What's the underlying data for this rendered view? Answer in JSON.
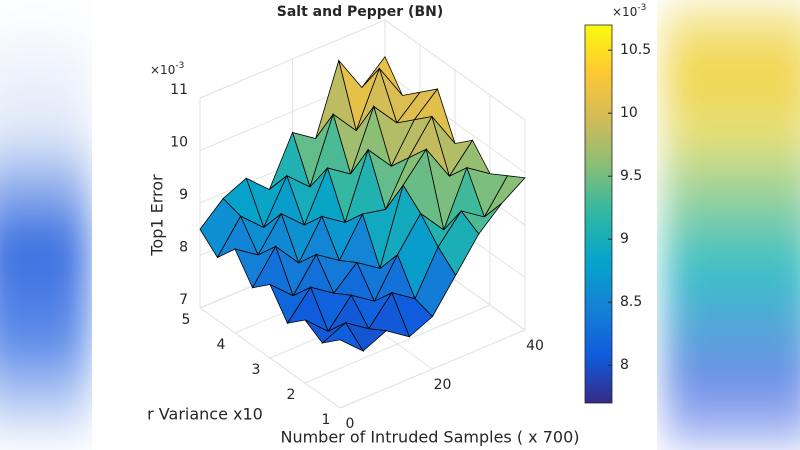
{
  "chart_data": {
    "type": "surface",
    "title": "Salt and Pepper (BN)",
    "xlabel": "Number of Intruded Samples ( x 700)",
    "ylabel": "r Variance x10",
    "zlabel": "Top1 Error",
    "zexp": {
      "base": "×10",
      "power": "-3"
    },
    "x": [
      0,
      5,
      10,
      15,
      20,
      25,
      30,
      35,
      40
    ],
    "y": [
      1,
      1.5,
      2,
      2.5,
      3,
      3.5,
      4,
      4.5,
      5
    ],
    "z": [
      [
        8.3,
        7.9,
        8.1,
        7.8,
        8.0,
        8.6,
        9.2,
        9.6,
        9.9
      ],
      [
        8.0,
        8.2,
        7.9,
        8.4,
        8.1,
        8.9,
        9.4,
        9.1,
        9.7
      ],
      [
        8.2,
        7.8,
        8.3,
        8.0,
        8.7,
        9.3,
        8.8,
        9.8,
        9.5
      ],
      [
        7.9,
        8.4,
        8.1,
        8.5,
        8.2,
        9.6,
        10.1,
        9.4,
        9.9
      ],
      [
        8.4,
        8.0,
        8.6,
        8.3,
        9.0,
        8.9,
        9.7,
        10.3,
        9.6
      ],
      [
        8.1,
        8.7,
        8.2,
        8.9,
        8.6,
        9.8,
        9.3,
        10.0,
        10.4
      ],
      [
        8.6,
        8.3,
        8.9,
        8.5,
        9.4,
        9.1,
        10.2,
        9.7,
        10.1
      ],
      [
        8.2,
        8.8,
        8.4,
        9.2,
        8.8,
        10.0,
        9.5,
        10.5,
        9.8
      ],
      [
        8.5,
        8.9,
        9.1,
        8.7,
        9.6,
        9.3,
        10.6,
        9.9,
        10.3
      ]
    ],
    "xlim": [
      0,
      40
    ],
    "xticks": [
      0,
      20,
      40
    ],
    "ylim": [
      1,
      5
    ],
    "yticks": [
      1,
      2,
      3,
      4,
      5
    ],
    "zlim": [
      7,
      11
    ],
    "zticks": [
      7,
      8,
      9,
      10,
      11
    ],
    "colormap": [
      "#352a87",
      "#0f5cdd",
      "#1481d6",
      "#06a4ca",
      "#2eb7a4",
      "#87bf77",
      "#d1bb59",
      "#fec832",
      "#f9fb0e"
    ],
    "clim": [
      7.7,
      10.7
    ],
    "cticks": [
      8,
      8.5,
      9,
      9.5,
      10,
      10.5
    ],
    "grid": true
  }
}
